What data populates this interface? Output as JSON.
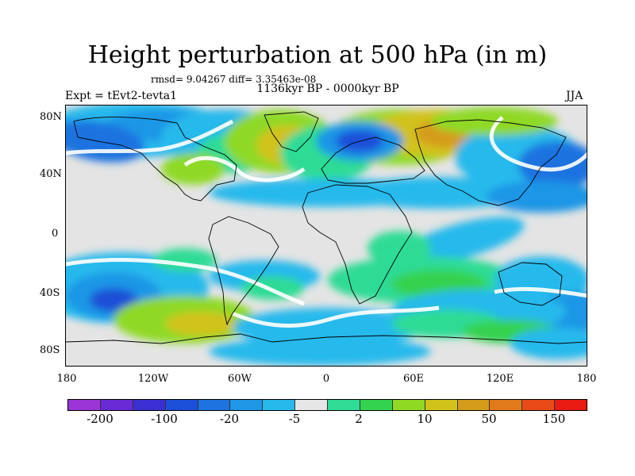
{
  "title": "Height perturbation at 500 hPa (in m)",
  "subtitle": "rmsd= 9.04267 diff= 3.35463e-08",
  "period": "1136kyr BP - 0000kyr BP",
  "expt": "Expt = tEvt2-tevta1",
  "season": "JJA",
  "lat_labels": [
    "80N",
    "40N",
    "0",
    "40S",
    "80S"
  ],
  "lon_labels": [
    "180",
    "120W",
    "60W",
    "0",
    "60E",
    "120E",
    "180"
  ],
  "colorbar": {
    "labels": [
      "-200",
      "-100",
      "-20",
      "-5",
      "2",
      "10",
      "50",
      "150"
    ],
    "colors": [
      "#9a35d6",
      "#6a2bd6",
      "#3c2fd2",
      "#1c4fd8",
      "#1e73e0",
      "#1f96e6",
      "#27b9ec",
      "#e6e6e6",
      "#2fdb95",
      "#35d24f",
      "#8fd925",
      "#d1c21a",
      "#d59b1d",
      "#e07a1b",
      "#e84a17",
      "#e81a14"
    ]
  },
  "map_palette": {
    "neutral": "#e4e4e4",
    "light_blue": "#27b9ec",
    "mid_blue": "#1f96e6",
    "blue": "#1e73e0",
    "dark_blue": "#1c4fd8",
    "teal": "#2fdb95",
    "green": "#35d24f",
    "yellow_green": "#8fd925",
    "olive": "#d1c21a",
    "orange": "#d59b1d",
    "white": "#ffffff"
  }
}
